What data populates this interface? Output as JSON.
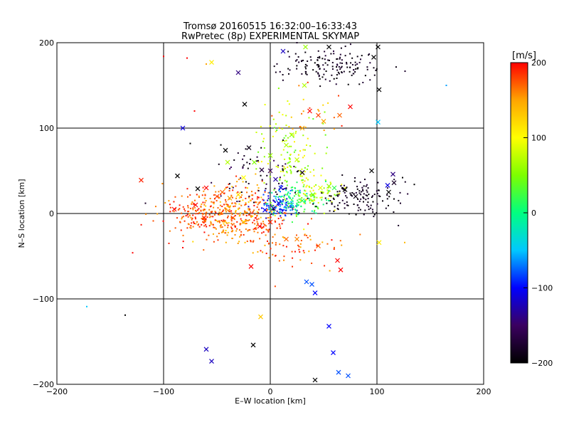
{
  "chart_data": {
    "type": "scatter",
    "title": "Tromsø 20160515 16:32:00–16:33:43",
    "subtitle": "RwPretec (8p) EXPERIMENTAL SKYMAP",
    "xlabel": "E–W location [km]",
    "ylabel": "N–S location [km]",
    "xlim": [
      -200,
      200
    ],
    "ylim": [
      -200,
      200
    ],
    "x_ticks": [
      -200,
      -100,
      0,
      100,
      200
    ],
    "y_ticks": [
      -200,
      -100,
      0,
      100,
      200
    ],
    "x_tick_labels": [
      "−200",
      "−100",
      "0",
      "100",
      "200"
    ],
    "y_tick_labels": [
      "−200",
      "−100",
      "0",
      "100",
      "200"
    ],
    "grid": true,
    "colorbar": {
      "label": "[m/s]",
      "min": -200,
      "max": 200,
      "ticks": [
        200,
        100,
        0,
        -100,
        -200
      ],
      "tick_labels": [
        "200",
        "100",
        "0",
        "−100",
        "−200"
      ],
      "colors": [
        "#000000",
        "#3b0060",
        "#0000ff",
        "#00c8ff",
        "#00ff80",
        "#7dff00",
        "#ffff00",
        "#ffa500",
        "#ff0000"
      ]
    },
    "markers": [
      {
        "x": -121,
        "y": 39,
        "v": 190,
        "s": "x"
      },
      {
        "x": -117,
        "y": 12,
        "v": -180,
        "s": "d"
      },
      {
        "x": -129,
        "y": -46,
        "v": 200,
        "s": "d"
      },
      {
        "x": -136,
        "y": -119,
        "v": -200,
        "s": "d"
      },
      {
        "x": -172,
        "y": -109,
        "v": -50,
        "s": "d"
      },
      {
        "x": -100,
        "y": 184,
        "v": 200,
        "s": "d"
      },
      {
        "x": -55,
        "y": 177,
        "v": 110,
        "s": "x"
      },
      {
        "x": -30,
        "y": 165,
        "v": -140,
        "s": "x"
      },
      {
        "x": -82,
        "y": 100,
        "v": -110,
        "s": "x"
      },
      {
        "x": -87,
        "y": 44,
        "v": -200,
        "s": "x"
      },
      {
        "x": -68,
        "y": 29,
        "v": -200,
        "s": "x"
      },
      {
        "x": -60,
        "y": 30,
        "v": 200,
        "s": "x"
      },
      {
        "x": -50,
        "y": 20,
        "v": 180,
        "s": "x"
      },
      {
        "x": -45,
        "y": 25,
        "v": 170,
        "s": "x"
      },
      {
        "x": -38,
        "y": 18,
        "v": 150,
        "s": "x"
      },
      {
        "x": -30,
        "y": 22,
        "v": 120,
        "s": "x"
      },
      {
        "x": -25,
        "y": 42,
        "v": 100,
        "s": "x"
      },
      {
        "x": -42,
        "y": 74,
        "v": -200,
        "s": "x"
      },
      {
        "x": -40,
        "y": 60,
        "v": 70,
        "s": "x"
      },
      {
        "x": -24,
        "y": 128,
        "v": -200,
        "s": "x"
      },
      {
        "x": -20,
        "y": 77,
        "v": -190,
        "s": "x"
      },
      {
        "x": -15,
        "y": 60,
        "v": 50,
        "s": "x"
      },
      {
        "x": -8,
        "y": 51,
        "v": -170,
        "s": "x"
      },
      {
        "x": 0,
        "y": 50,
        "v": -150,
        "s": "x"
      },
      {
        "x": 5,
        "y": 40,
        "v": -130,
        "s": "x"
      },
      {
        "x": 10,
        "y": 30,
        "v": -110,
        "s": "x"
      },
      {
        "x": 12,
        "y": 190,
        "v": -120,
        "s": "x"
      },
      {
        "x": 33,
        "y": 195,
        "v": 60,
        "s": "x"
      },
      {
        "x": 55,
        "y": 195,
        "v": -200,
        "s": "x"
      },
      {
        "x": 32,
        "y": 150,
        "v": 70,
        "s": "x"
      },
      {
        "x": 37,
        "y": 120,
        "v": 200,
        "s": "x"
      },
      {
        "x": 45,
        "y": 115,
        "v": 180,
        "s": "x"
      },
      {
        "x": 50,
        "y": 108,
        "v": 150,
        "s": "x"
      },
      {
        "x": 65,
        "y": 115,
        "v": 170,
        "s": "x"
      },
      {
        "x": 75,
        "y": 125,
        "v": 200,
        "s": "x"
      },
      {
        "x": 97,
        "y": 183,
        "v": -200,
        "s": "x"
      },
      {
        "x": 101,
        "y": 195,
        "v": -200,
        "s": "x"
      },
      {
        "x": 102,
        "y": 145,
        "v": -200,
        "s": "x"
      },
      {
        "x": 101,
        "y": 107,
        "v": -50,
        "s": "x"
      },
      {
        "x": 95,
        "y": 50,
        "v": -200,
        "s": "x"
      },
      {
        "x": 115,
        "y": 46,
        "v": -140,
        "s": "x"
      },
      {
        "x": 110,
        "y": 33,
        "v": -110,
        "s": "x"
      },
      {
        "x": 116,
        "y": 36,
        "v": -180,
        "s": "x"
      },
      {
        "x": 111,
        "y": 25,
        "v": -200,
        "s": "x"
      },
      {
        "x": 102,
        "y": -34,
        "v": 110,
        "s": "x"
      },
      {
        "x": 80,
        "y": 20,
        "v": -190,
        "s": "x"
      },
      {
        "x": 70,
        "y": 28,
        "v": -200,
        "s": "x"
      },
      {
        "x": 60,
        "y": 30,
        "v": 20,
        "s": "x"
      },
      {
        "x": 55,
        "y": 32,
        "v": 60,
        "s": "x"
      },
      {
        "x": 47,
        "y": 30,
        "v": 90,
        "s": "x"
      },
      {
        "x": 40,
        "y": 22,
        "v": 40,
        "s": "x"
      },
      {
        "x": 30,
        "y": 15,
        "v": 20,
        "s": "x"
      },
      {
        "x": 20,
        "y": 10,
        "v": -40,
        "s": "x"
      },
      {
        "x": 8,
        "y": 12,
        "v": -110,
        "s": "x"
      },
      {
        "x": 3,
        "y": 6,
        "v": -140,
        "s": "x"
      },
      {
        "x": -5,
        "y": 4,
        "v": -100,
        "s": "x"
      },
      {
        "x": 0,
        "y": -10,
        "v": 190,
        "s": "x"
      },
      {
        "x": -10,
        "y": -15,
        "v": 200,
        "s": "x"
      },
      {
        "x": -18,
        "y": -62,
        "v": 200,
        "s": "x"
      },
      {
        "x": -9,
        "y": -121,
        "v": 130,
        "s": "x"
      },
      {
        "x": -16,
        "y": -154,
        "v": -200,
        "s": "x"
      },
      {
        "x": -60,
        "y": -159,
        "v": -120,
        "s": "x"
      },
      {
        "x": -55,
        "y": -173,
        "v": -120,
        "s": "x"
      },
      {
        "x": 34,
        "y": -80,
        "v": -80,
        "s": "x"
      },
      {
        "x": 39,
        "y": -83,
        "v": -80,
        "s": "x"
      },
      {
        "x": 42,
        "y": -93,
        "v": -100,
        "s": "x"
      },
      {
        "x": 55,
        "y": -132,
        "v": -100,
        "s": "x"
      },
      {
        "x": 59,
        "y": -163,
        "v": -100,
        "s": "x"
      },
      {
        "x": 64,
        "y": -186,
        "v": -80,
        "s": "x"
      },
      {
        "x": 73,
        "y": -190,
        "v": -80,
        "s": "x"
      },
      {
        "x": 42,
        "y": -195,
        "v": -200,
        "s": "x"
      },
      {
        "x": 63,
        "y": -55,
        "v": 200,
        "s": "x"
      },
      {
        "x": 66,
        "y": -66,
        "v": 200,
        "s": "x"
      },
      {
        "x": 45,
        "y": -38,
        "v": 170,
        "s": "x"
      },
      {
        "x": 25,
        "y": -30,
        "v": 160,
        "s": "x"
      },
      {
        "x": 15,
        "y": -30,
        "v": 170,
        "s": "x"
      },
      {
        "x": -25,
        "y": -10,
        "v": 120,
        "s": "x"
      },
      {
        "x": -35,
        "y": -5,
        "v": 180,
        "s": "x"
      },
      {
        "x": -90,
        "y": 5,
        "v": 200,
        "s": "x"
      },
      {
        "x": -70,
        "y": 10,
        "v": 200,
        "s": "x"
      },
      {
        "x": -62,
        "y": -5,
        "v": 190,
        "s": "x"
      },
      {
        "x": 15,
        "y": 80,
        "v": 70,
        "s": "x"
      },
      {
        "x": 25,
        "y": 63,
        "v": 80,
        "s": "x"
      },
      {
        "x": 20,
        "y": 92,
        "v": 60,
        "s": "x"
      },
      {
        "x": 0,
        "y": 68,
        "v": 60,
        "s": "x"
      },
      {
        "x": 30,
        "y": 48,
        "v": -180,
        "s": "x"
      },
      {
        "x": 30,
        "y": 100,
        "v": 150,
        "s": "x"
      },
      {
        "x": 165,
        "y": 150,
        "v": -60,
        "s": "d"
      },
      {
        "x": 126,
        "y": -34,
        "v": 140,
        "s": "d"
      },
      {
        "x": 124,
        "y": 42,
        "v": -200,
        "s": "d"
      },
      {
        "x": 135,
        "y": 34,
        "v": -200,
        "s": "d"
      },
      {
        "x": 122,
        "y": 12,
        "v": -180,
        "s": "d"
      },
      {
        "x": -82,
        "y": -40,
        "v": 200,
        "s": "d"
      },
      {
        "x": -95,
        "y": -35,
        "v": 190,
        "s": "d"
      },
      {
        "x": -75,
        "y": 82,
        "v": -200,
        "s": "d"
      },
      {
        "x": -78,
        "y": 182,
        "v": 200,
        "s": "d"
      },
      {
        "x": -71,
        "y": 120,
        "v": 200,
        "s": "d"
      },
      {
        "x": -60,
        "y": 175,
        "v": 150,
        "s": "d"
      },
      {
        "x": -13,
        "y": 95,
        "v": 80,
        "s": "d"
      },
      {
        "x": 25,
        "y": 200,
        "v": -160,
        "s": "d"
      }
    ],
    "clusters": [
      {
        "cx": -55,
        "cy": 0,
        "sx": 22,
        "sy": 14,
        "n": 260,
        "vmin": 150,
        "vmax": 200
      },
      {
        "cx": -28,
        "cy": 10,
        "sx": 14,
        "sy": 14,
        "n": 110,
        "vmin": 110,
        "vmax": 200
      },
      {
        "cx": -5,
        "cy": -12,
        "sx": 12,
        "sy": 16,
        "n": 70,
        "vmin": 160,
        "vmax": 200
      },
      {
        "cx": 8,
        "cy": 10,
        "sx": 10,
        "sy": 9,
        "n": 110,
        "vmin": -130,
        "vmax": -40
      },
      {
        "cx": 28,
        "cy": 15,
        "sx": 14,
        "sy": 9,
        "n": 110,
        "vmin": -20,
        "vmax": 40
      },
      {
        "cx": 45,
        "cy": 24,
        "sx": 12,
        "sy": 8,
        "n": 60,
        "vmin": 50,
        "vmax": 110
      },
      {
        "cx": 18,
        "cy": 65,
        "sx": 16,
        "sy": 28,
        "n": 140,
        "vmin": 30,
        "vmax": 120
      },
      {
        "cx": -10,
        "cy": 45,
        "sx": 18,
        "sy": 18,
        "n": 60,
        "vmin": -200,
        "vmax": -150
      },
      {
        "cx": 80,
        "cy": 18,
        "sx": 20,
        "sy": 10,
        "n": 130,
        "vmin": -200,
        "vmax": -170
      },
      {
        "cx": 58,
        "cy": 172,
        "sx": 22,
        "sy": 10,
        "n": 150,
        "vmin": -200,
        "vmax": -170
      },
      {
        "cx": 20,
        "cy": -35,
        "sx": 25,
        "sy": 14,
        "n": 70,
        "vmin": 140,
        "vmax": 200
      },
      {
        "cx": 40,
        "cy": 115,
        "sx": 15,
        "sy": 12,
        "n": 20,
        "vmin": 120,
        "vmax": 200
      },
      {
        "cx": -40,
        "cy": -15,
        "sx": 12,
        "sy": 12,
        "n": 40,
        "vmin": 120,
        "vmax": 170
      }
    ]
  }
}
